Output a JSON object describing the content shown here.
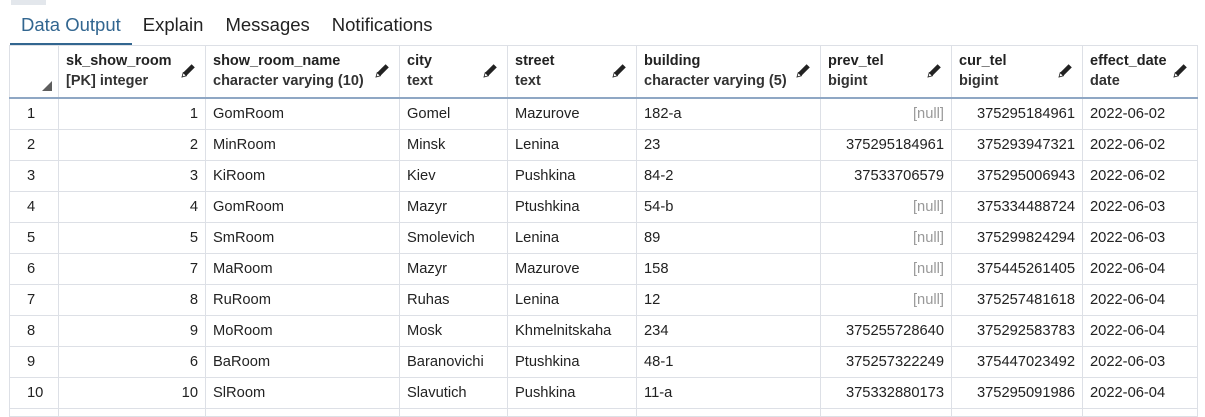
{
  "tabs": [
    {
      "label": "Data Output",
      "active": true
    },
    {
      "label": "Explain",
      "active": false
    },
    {
      "label": "Messages",
      "active": false
    },
    {
      "label": "Notifications",
      "active": false
    }
  ],
  "icons": {
    "sort": "sort-triangle-icon",
    "edit": "pencil-icon"
  },
  "colors": {
    "accent": "#326690",
    "border": "#dde0e6",
    "null_text": "#999999"
  },
  "columns": [
    {
      "name": "sk_show_room",
      "type": "[PK] integer"
    },
    {
      "name": "show_room_name",
      "type": "character varying (10)"
    },
    {
      "name": "city",
      "type": "text"
    },
    {
      "name": "street",
      "type": "text"
    },
    {
      "name": "building",
      "type": "character varying (5)"
    },
    {
      "name": "prev_tel",
      "type": "bigint"
    },
    {
      "name": "cur_tel",
      "type": "bigint"
    },
    {
      "name": "effect_date",
      "type": "date"
    }
  ],
  "rows": [
    {
      "row": "1",
      "cells": [
        "1",
        "GomRoom",
        "Gomel",
        "Mazurove",
        "182-a",
        "[null]",
        "375295184961",
        "2022-06-02"
      ]
    },
    {
      "row": "2",
      "cells": [
        "2",
        "MinRoom",
        "Minsk",
        "Lenina",
        "23",
        "375295184961",
        "375293947321",
        "2022-06-02"
      ]
    },
    {
      "row": "3",
      "cells": [
        "3",
        "KiRoom",
        "Kiev",
        "Pushkina",
        "84-2",
        "37533706579",
        "375295006943",
        "2022-06-02"
      ]
    },
    {
      "row": "4",
      "cells": [
        "4",
        "GomRoom",
        "Mazyr",
        "Ptushkina",
        "54-b",
        "[null]",
        "375334488724",
        "2022-06-03"
      ]
    },
    {
      "row": "5",
      "cells": [
        "5",
        "SmRoom",
        "Smolevich",
        "Lenina",
        "89",
        "[null]",
        "375299824294",
        "2022-06-03"
      ]
    },
    {
      "row": "6",
      "cells": [
        "7",
        "MaRoom",
        "Mazyr",
        "Mazurove",
        "158",
        "[null]",
        "375445261405",
        "2022-06-04"
      ]
    },
    {
      "row": "7",
      "cells": [
        "8",
        "RuRoom",
        "Ruhas",
        "Lenina",
        "12",
        "[null]",
        "375257481618",
        "2022-06-04"
      ]
    },
    {
      "row": "8",
      "cells": [
        "9",
        "MoRoom",
        "Mosk",
        "Khmelnitskaha",
        "234",
        "375255728640",
        "375292583783",
        "2022-06-04"
      ]
    },
    {
      "row": "9",
      "cells": [
        "6",
        "BaRoom",
        "Baranovichi",
        "Ptushkina",
        "48-1",
        "375257322249",
        "375447023492",
        "2022-06-03"
      ]
    },
    {
      "row": "10",
      "cells": [
        "10",
        "SlRoom",
        "Slavutich",
        "Pushkina",
        "11-a",
        "375332880173",
        "375295091986",
        "2022-06-04"
      ]
    }
  ]
}
